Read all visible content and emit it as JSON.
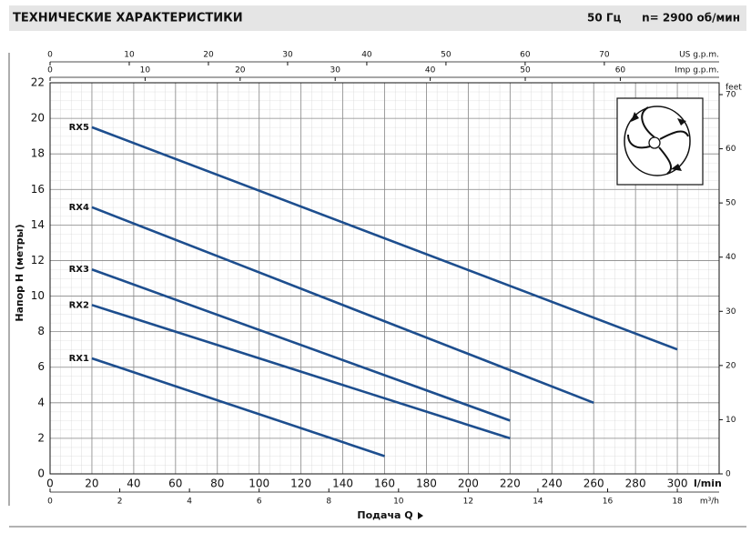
{
  "chart_data": {
    "type": "line",
    "title": "ТЕХНИЧЕСКИЕ ХАРАКТЕРИСТИКИ",
    "frequency": "50 Гц",
    "speed": "n= 2900 об/мин",
    "ylabel": "Напор H (метры)",
    "xlabel": "Подача Q",
    "xunit": "l/min",
    "xlim": [
      0,
      320
    ],
    "xticks": [
      0,
      20,
      40,
      60,
      80,
      100,
      120,
      140,
      160,
      180,
      200,
      220,
      240,
      260,
      280,
      300
    ],
    "ylim": [
      0,
      22
    ],
    "yticks": [
      0,
      2,
      4,
      6,
      8,
      10,
      12,
      14,
      16,
      18,
      20,
      22
    ],
    "y2label": "feet",
    "y2lim": [
      0,
      72.18
    ],
    "y2ticks": [
      0,
      10,
      20,
      30,
      40,
      50,
      60,
      70
    ],
    "grid": true,
    "extra_axes": [
      {
        "label": "US g.p.m.",
        "lim": [
          0,
          84.5
        ],
        "ticks": [
          0,
          10,
          20,
          30,
          40,
          50,
          60,
          70
        ]
      },
      {
        "label": "Imp g.p.m.",
        "lim": [
          0,
          70.4
        ],
        "ticks": [
          0,
          10,
          20,
          30,
          40,
          50,
          60
        ]
      },
      {
        "label": "m³/h",
        "lim": [
          0,
          19.2
        ],
        "ticks": [
          0,
          2,
          4,
          6,
          8,
          10,
          12,
          14,
          16,
          18
        ]
      }
    ],
    "series": [
      {
        "name": "RX1",
        "color": "#1d4e8e",
        "x": [
          20,
          160
        ],
        "values": [
          6.5,
          1.0
        ]
      },
      {
        "name": "RX2",
        "color": "#1d4e8e",
        "x": [
          20,
          220
        ],
        "values": [
          9.5,
          2.0
        ]
      },
      {
        "name": "RX3",
        "color": "#1d4e8e",
        "x": [
          20,
          220
        ],
        "values": [
          11.5,
          3.0
        ]
      },
      {
        "name": "RX4",
        "color": "#1d4e8e",
        "x": [
          20,
          260
        ],
        "values": [
          15.0,
          4.0
        ]
      },
      {
        "name": "RX5",
        "color": "#1d4e8e",
        "x": [
          20,
          300
        ],
        "values": [
          19.5,
          7.0
        ]
      }
    ]
  }
}
